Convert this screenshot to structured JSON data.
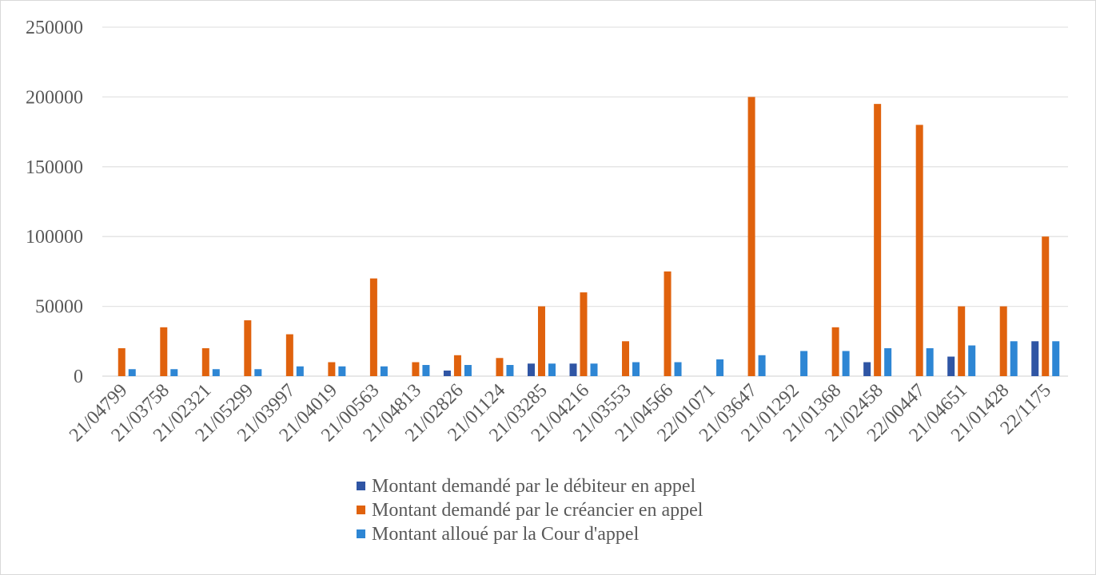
{
  "chart_data": {
    "type": "bar",
    "title": "",
    "xlabel": "",
    "ylabel": "",
    "ylim": [
      0,
      250000
    ],
    "yticks": [
      "0",
      "50000",
      "100000",
      "150000",
      "200000",
      "250000"
    ],
    "grid": true,
    "legend_position": "bottom",
    "categories": [
      "21/04799",
      "21/03758",
      "21/02321",
      "21/05299",
      "21/03997",
      "21/04019",
      "21/00563",
      "21/04813",
      "21/02826",
      "21/01124",
      "21/03285",
      "21/04216",
      "21/03553",
      "21/04566",
      "22/01071",
      "21/03647",
      "21/01292",
      "21/01368",
      "21/02458",
      "22/00447",
      "21/04651",
      "21/01428",
      "22/1175"
    ],
    "series": [
      {
        "name": "Montant demandé par le débiteur en appel",
        "color": "#2f55a4",
        "values": [
          0,
          0,
          0,
          0,
          0,
          0,
          0,
          0,
          4000,
          0,
          9000,
          9000,
          0,
          0,
          0,
          0,
          0,
          0,
          10000,
          0,
          14000,
          0,
          25000
        ]
      },
      {
        "name": "Montant demandé par le créancier en appel",
        "color": "#e0620d",
        "values": [
          20000,
          35000,
          20000,
          40000,
          30000,
          10000,
          70000,
          10000,
          15000,
          13000,
          50000,
          60000,
          25000,
          75000,
          0,
          200000,
          0,
          35000,
          195000,
          180000,
          50000,
          50000,
          100000
        ]
      },
      {
        "name": "Montant alloué par la Cour d'appel",
        "color": "#2e86d4",
        "values": [
          5000,
          5000,
          5000,
          5000,
          7000,
          7000,
          7000,
          8000,
          8000,
          8000,
          9000,
          9000,
          10000,
          10000,
          12000,
          15000,
          18000,
          18000,
          20000,
          20000,
          22000,
          25000,
          25000
        ]
      }
    ]
  }
}
